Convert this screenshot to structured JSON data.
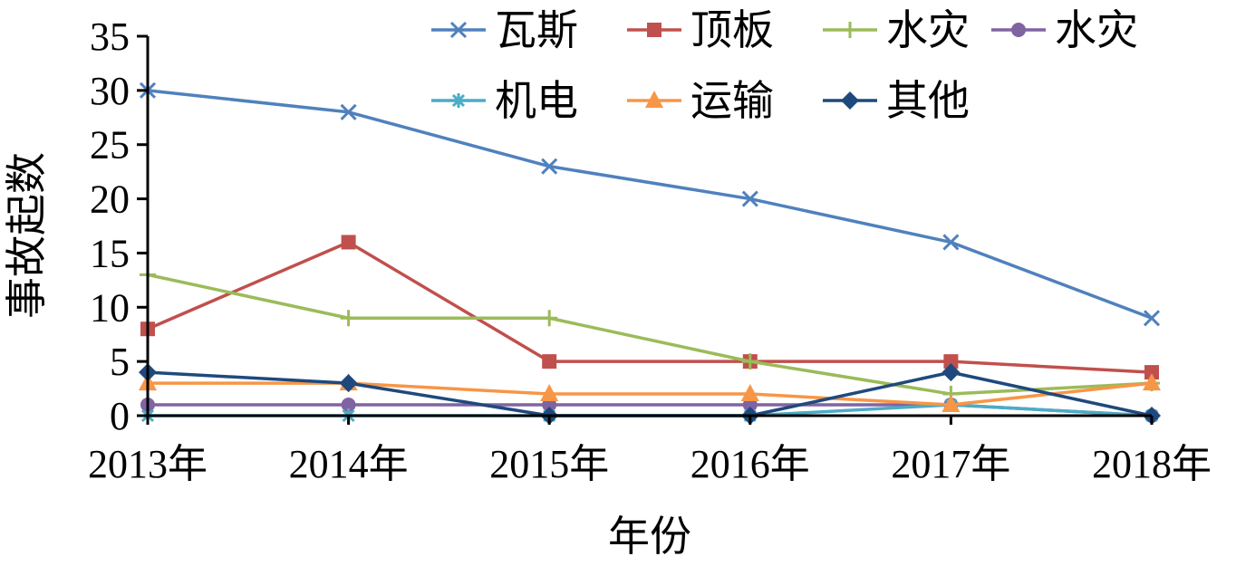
{
  "chart_data": {
    "type": "line",
    "title": "",
    "xlabel": "年份",
    "ylabel": "事故起数",
    "categories": [
      "2013年",
      "2014年",
      "2015年",
      "2016年",
      "2017年",
      "2018年"
    ],
    "ylim": [
      0,
      35
    ],
    "yticks": [
      0,
      5,
      10,
      15,
      20,
      25,
      30,
      35
    ],
    "grid": false,
    "legend_position": "top",
    "series": [
      {
        "name": "瓦斯",
        "values": [
          30,
          28,
          23,
          20,
          16,
          9
        ],
        "color": "#4F81BD",
        "marker": "x"
      },
      {
        "name": "顶板",
        "values": [
          8,
          16,
          5,
          5,
          5,
          4
        ],
        "color": "#C0504D",
        "marker": "square"
      },
      {
        "name": "水灾",
        "values": [
          13,
          9,
          9,
          5,
          2,
          3
        ],
        "color": "#9BBB59",
        "marker": "plus"
      },
      {
        "name": "水灾",
        "values": [
          1,
          1,
          1,
          1,
          1,
          0
        ],
        "color": "#8064A2",
        "marker": "circle"
      },
      {
        "name": "机电",
        "values": [
          0,
          0,
          0,
          0,
          1,
          0
        ],
        "color": "#4BACC6",
        "marker": "asterisk"
      },
      {
        "name": "运输",
        "values": [
          3,
          3,
          2,
          2,
          1,
          3
        ],
        "color": "#F79646",
        "marker": "triangle"
      },
      {
        "name": "其他",
        "values": [
          4,
          3,
          0,
          0,
          4,
          0
        ],
        "color": "#1F497D",
        "marker": "diamond"
      }
    ]
  }
}
